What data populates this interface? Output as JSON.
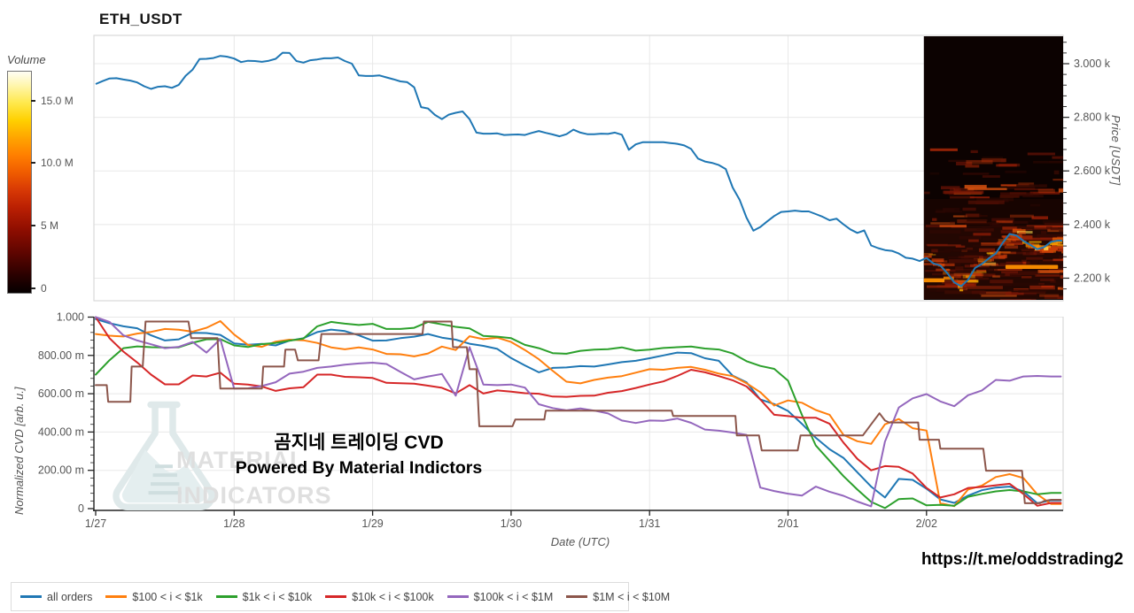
{
  "header": {
    "title": "ETH_USDT"
  },
  "colorbar": {
    "label": "Volume",
    "ticks": [
      {
        "value": 15000000,
        "label": "15.0 M"
      },
      {
        "value": 10000000,
        "label": "10.0 M"
      },
      {
        "value": 5000000,
        "label": "5 M"
      },
      {
        "value": 0,
        "label": "0"
      }
    ],
    "max_value": 17250000,
    "gradient": [
      [
        0,
        "#050000"
      ],
      [
        0.08,
        "#2a0100"
      ],
      [
        0.18,
        "#5e0500"
      ],
      [
        0.28,
        "#8c0d00"
      ],
      [
        0.38,
        "#b81e02"
      ],
      [
        0.46,
        "#d63705"
      ],
      [
        0.54,
        "#ef5a00"
      ],
      [
        0.62,
        "#ff7e00"
      ],
      [
        0.7,
        "#ffa400"
      ],
      [
        0.78,
        "#ffd000"
      ],
      [
        0.86,
        "#ffe94e"
      ],
      [
        0.94,
        "#fff6b0"
      ],
      [
        1,
        "#fffef5"
      ]
    ]
  },
  "price_axis": {
    "label": "Price [USDT]"
  },
  "cvd_axis": {
    "label": "Normalized CVD [arb. u.]"
  },
  "date_axis": {
    "label": "Date (UTC)"
  },
  "watermark": {
    "brand_line1": "MATERIAL",
    "brand_line2": "INDICATORS",
    "line1": "곰지네 트레이딩 CVD",
    "line2": "Powered By Material Indictors"
  },
  "footer": {
    "link": "https://t.me/oddstrading2"
  },
  "legend": {
    "items": [
      {
        "label": "all orders",
        "color": "#1f77b4"
      },
      {
        "label": "$100 < i < $1k",
        "color": "#ff7f0e"
      },
      {
        "label": "$1k < i < $10k",
        "color": "#2ca02c"
      },
      {
        "label": "$10k < i < $100k",
        "color": "#d62728"
      },
      {
        "label": "$100k < i < $1M",
        "color": "#9467bd"
      },
      {
        "label": "$1M < i < $10M",
        "color": "#8c564b"
      }
    ]
  },
  "chart_data": [
    {
      "type": "line",
      "title": "ETH_USDT",
      "ylabel": "Price [USDT]",
      "ylim": [
        2115,
        3105
      ],
      "yticks": [
        {
          "v": 2200,
          "label": "2.200 k"
        },
        {
          "v": 2400,
          "label": "2.400 k"
        },
        {
          "v": 2600,
          "label": "2.600 k"
        },
        {
          "v": 2800,
          "label": "2.800 k"
        },
        {
          "v": 3000,
          "label": "3.000 k"
        }
      ],
      "x_unit": "days since 1/27 (UTC)",
      "series": [
        {
          "name": "ETH_USDT price",
          "color": "#1f77b4",
          "x_start": 0,
          "x_step": 0.05,
          "values": [
            2924,
            2935,
            2945,
            2946,
            2941,
            2937,
            2930,
            2916,
            2906,
            2914,
            2916,
            2910,
            2921,
            2955,
            2978,
            3017,
            3018,
            3021,
            3029,
            3026,
            3019,
            3006,
            3011,
            3010,
            3007,
            3011,
            3018,
            3041,
            3040,
            3010,
            3004,
            3013,
            3016,
            3020,
            3020,
            3023,
            3010,
            3000,
            2956,
            2954,
            2954,
            2956,
            2949,
            2942,
            2934,
            2931,
            2912,
            2838,
            2833,
            2809,
            2793,
            2810,
            2817,
            2822,
            2793,
            2743,
            2739,
            2739,
            2740,
            2734,
            2735,
            2736,
            2734,
            2742,
            2749,
            2742,
            2736,
            2729,
            2737,
            2754,
            2743,
            2737,
            2737,
            2739,
            2738,
            2743,
            2735,
            2679,
            2699,
            2707,
            2707,
            2707,
            2707,
            2704,
            2701,
            2695,
            2682,
            2646,
            2635,
            2630,
            2622,
            2607,
            2538,
            2493,
            2426,
            2377,
            2391,
            2412,
            2432,
            2447,
            2449,
            2452,
            2449,
            2449,
            2439,
            2429,
            2416,
            2422,
            2401,
            2382,
            2369,
            2378,
            2322,
            2312,
            2305,
            2302,
            2292,
            2276,
            2273,
            2264,
            2275,
            2255,
            2247,
            2219,
            2184,
            2170,
            2194,
            2238,
            2253,
            2274,
            2292,
            2332,
            2365,
            2359,
            2339,
            2324,
            2308,
            2316,
            2336,
            2340
          ]
        }
      ],
      "heatmap": {
        "label": "Volume",
        "from_day": 5.98,
        "to_day": 6.99,
        "price_range": [
          2115,
          3105
        ],
        "bg": "#0c0201",
        "bright_segments": [
          {
            "price": 2193,
            "from_day": 5.98,
            "to_day": 6.13
          },
          {
            "price": 2243,
            "from_day": 6.57,
            "to_day": 6.95
          }
        ]
      }
    },
    {
      "type": "line",
      "ylabel": "Normalized CVD [arb. u.]",
      "xlabel": "Date (UTC)",
      "ylim": [
        0,
        1
      ],
      "yticks": [
        "0",
        "200.00 m",
        "400.00 m",
        "600.00 m",
        "800.00 m",
        "1.000"
      ],
      "xticks": [
        "1/27",
        "1/28",
        "1/29",
        "1/30",
        "1/31",
        "2/01",
        "2/02"
      ],
      "series": [
        {
          "name": "all orders",
          "color": "#1f77b4",
          "x_start": 0,
          "x_step": 0.1,
          "values": [
            0.99,
            0.968,
            0.952,
            0.942,
            0.905,
            0.878,
            0.884,
            0.918,
            0.917,
            0.907,
            0.863,
            0.856,
            0.86,
            0.852,
            0.877,
            0.89,
            0.922,
            0.935,
            0.927,
            0.905,
            0.877,
            0.878,
            0.89,
            0.898,
            0.912,
            0.893,
            0.882,
            0.861,
            0.85,
            0.834,
            0.786,
            0.748,
            0.712,
            0.735,
            0.737,
            0.744,
            0.742,
            0.753,
            0.765,
            0.772,
            0.785,
            0.8,
            0.815,
            0.812,
            0.785,
            0.772,
            0.694,
            0.66,
            0.57,
            0.546,
            0.51,
            0.443,
            0.37,
            0.31,
            0.265,
            0.19,
            0.115,
            0.058,
            0.155,
            0.15,
            0.104,
            0.048,
            0.03,
            0.068,
            0.096,
            0.11,
            0.115,
            0.09,
            0.028,
            0.043
          ]
        },
        {
          "name": "$100 < i < $1k",
          "color": "#ff7f0e",
          "x_start": 0,
          "x_step": 0.1,
          "values": [
            0.912,
            0.903,
            0.899,
            0.914,
            0.923,
            0.938,
            0.934,
            0.924,
            0.944,
            0.979,
            0.909,
            0.855,
            0.845,
            0.872,
            0.882,
            0.879,
            0.865,
            0.842,
            0.832,
            0.842,
            0.831,
            0.808,
            0.806,
            0.795,
            0.81,
            0.846,
            0.828,
            0.9,
            0.885,
            0.893,
            0.87,
            0.828,
            0.78,
            0.72,
            0.663,
            0.654,
            0.672,
            0.684,
            0.692,
            0.71,
            0.728,
            0.725,
            0.735,
            0.74,
            0.725,
            0.705,
            0.692,
            0.655,
            0.608,
            0.538,
            0.565,
            0.553,
            0.515,
            0.49,
            0.385,
            0.352,
            0.338,
            0.44,
            0.468,
            0.42,
            0.408,
            0.028,
            0.013,
            0.1,
            0.12,
            0.165,
            0.18,
            0.16,
            0.075,
            0.024
          ]
        },
        {
          "name": "$1k < i < $10k",
          "color": "#2ca02c",
          "x_start": 0,
          "x_step": 0.1,
          "values": [
            0.7,
            0.775,
            0.838,
            0.847,
            0.843,
            0.841,
            0.842,
            0.866,
            0.884,
            0.885,
            0.852,
            0.844,
            0.859,
            0.865,
            0.877,
            0.888,
            0.952,
            0.975,
            0.966,
            0.959,
            0.965,
            0.938,
            0.938,
            0.944,
            0.975,
            0.962,
            0.949,
            0.941,
            0.902,
            0.898,
            0.89,
            0.855,
            0.838,
            0.812,
            0.809,
            0.824,
            0.83,
            0.833,
            0.842,
            0.825,
            0.83,
            0.839,
            0.843,
            0.846,
            0.836,
            0.831,
            0.81,
            0.77,
            0.745,
            0.73,
            0.668,
            0.49,
            0.33,
            0.25,
            0.17,
            0.1,
            0.035,
            0.003,
            0.05,
            0.053,
            0.017,
            0.02,
            0.015,
            0.062,
            0.077,
            0.09,
            0.097,
            0.09,
            0.075,
            0.082
          ]
        },
        {
          "name": "$10k < i < $100k",
          "color": "#d62728",
          "x_start": 0,
          "x_step": 0.1,
          "values": [
            1.0,
            0.89,
            0.82,
            0.763,
            0.7,
            0.649,
            0.649,
            0.695,
            0.69,
            0.71,
            0.652,
            0.648,
            0.638,
            0.615,
            0.628,
            0.634,
            0.7,
            0.7,
            0.688,
            0.686,
            0.682,
            0.657,
            0.655,
            0.652,
            0.642,
            0.631,
            0.602,
            0.645,
            0.601,
            0.617,
            0.611,
            0.603,
            0.6,
            0.585,
            0.584,
            0.589,
            0.59,
            0.605,
            0.614,
            0.63,
            0.648,
            0.664,
            0.693,
            0.725,
            0.712,
            0.692,
            0.67,
            0.638,
            0.57,
            0.49,
            0.483,
            0.475,
            0.475,
            0.443,
            0.345,
            0.26,
            0.2,
            0.222,
            0.218,
            0.183,
            0.108,
            0.058,
            0.075,
            0.108,
            0.113,
            0.122,
            0.13,
            0.076,
            0.015,
            0.03
          ]
        },
        {
          "name": "$100k < i < $1M",
          "color": "#9467bd",
          "x_start": 0,
          "x_step": 0.1,
          "values": [
            1.0,
            0.975,
            0.905,
            0.878,
            0.858,
            0.838,
            0.845,
            0.87,
            0.815,
            0.885,
            0.627,
            0.628,
            0.64,
            0.66,
            0.705,
            0.715,
            0.735,
            0.742,
            0.752,
            0.758,
            0.762,
            0.755,
            0.714,
            0.675,
            0.69,
            0.703,
            0.59,
            0.843,
            0.648,
            0.645,
            0.648,
            0.632,
            0.545,
            0.525,
            0.513,
            0.523,
            0.512,
            0.497,
            0.46,
            0.447,
            0.46,
            0.458,
            0.47,
            0.448,
            0.413,
            0.407,
            0.397,
            0.385,
            0.11,
            0.092,
            0.078,
            0.068,
            0.115,
            0.088,
            0.067,
            0.037,
            0.012,
            0.35,
            0.528,
            0.576,
            0.598,
            0.56,
            0.535,
            0.592,
            0.617,
            0.672,
            0.668,
            0.69,
            0.693,
            0.69
          ]
        },
        {
          "name": "$1M < i < $10M",
          "color": "#8c564b",
          "points": [
            [
              0.0,
              0.645
            ],
            [
              0.08,
              0.645
            ],
            [
              0.09,
              0.558
            ],
            [
              0.25,
              0.558
            ],
            [
              0.26,
              0.742
            ],
            [
              0.34,
              0.742
            ],
            [
              0.36,
              0.977
            ],
            [
              0.67,
              0.977
            ],
            [
              0.69,
              0.89
            ],
            [
              0.88,
              0.89
            ],
            [
              0.9,
              0.627
            ],
            [
              1.2,
              0.627
            ],
            [
              1.21,
              0.742
            ],
            [
              1.36,
              0.742
            ],
            [
              1.37,
              0.83
            ],
            [
              1.44,
              0.83
            ],
            [
              1.46,
              0.774
            ],
            [
              1.61,
              0.774
            ],
            [
              1.63,
              0.912
            ],
            [
              2.36,
              0.912
            ],
            [
              2.37,
              0.977
            ],
            [
              2.57,
              0.977
            ],
            [
              2.58,
              0.843
            ],
            [
              2.68,
              0.843
            ],
            [
              2.7,
              0.728
            ],
            [
              2.75,
              0.728
            ],
            [
              2.77,
              0.43
            ],
            [
              3.01,
              0.43
            ],
            [
              3.03,
              0.465
            ],
            [
              3.24,
              0.465
            ],
            [
              3.25,
              0.512
            ],
            [
              4.16,
              0.512
            ],
            [
              4.17,
              0.484
            ],
            [
              4.62,
              0.484
            ],
            [
              4.63,
              0.382
            ],
            [
              4.79,
              0.382
            ],
            [
              4.81,
              0.304
            ],
            [
              5.07,
              0.304
            ],
            [
              5.09,
              0.382
            ],
            [
              5.54,
              0.382
            ],
            [
              5.6,
              0.44
            ],
            [
              5.66,
              0.498
            ],
            [
              5.7,
              0.46
            ],
            [
              5.73,
              0.45
            ],
            [
              5.94,
              0.45
            ],
            [
              5.95,
              0.36
            ],
            [
              6.09,
              0.36
            ],
            [
              6.1,
              0.313
            ],
            [
              6.41,
              0.313
            ],
            [
              6.43,
              0.198
            ],
            [
              6.69,
              0.198
            ],
            [
              6.71,
              0.028
            ],
            [
              6.82,
              0.028
            ],
            [
              6.85,
              0.04
            ],
            [
              6.9,
              0.046
            ],
            [
              6.97,
              0.046
            ]
          ]
        }
      ]
    }
  ]
}
